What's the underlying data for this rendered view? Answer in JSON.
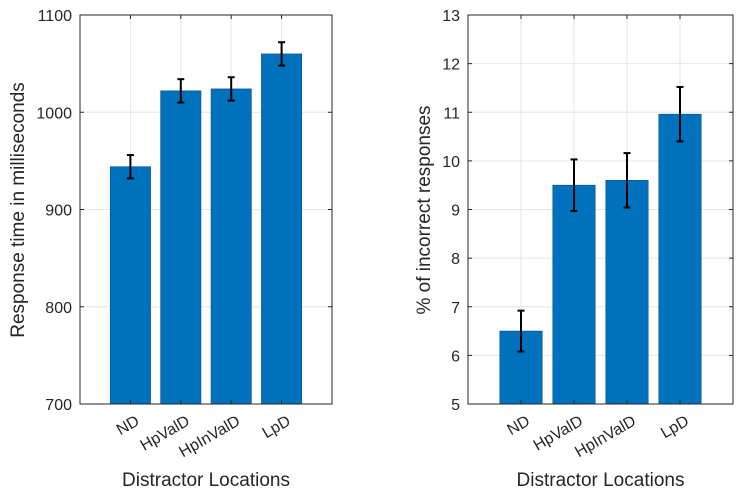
{
  "chart_data": [
    {
      "type": "bar",
      "title": "",
      "xlabel": "Distractor Locations",
      "ylabel": "Response time in milliseconds",
      "categories": [
        "ND",
        "HpValD",
        "HpInValD",
        "LpD"
      ],
      "values": [
        944,
        1022,
        1024,
        1060
      ],
      "errors": [
        12,
        12,
        12,
        12
      ],
      "ylim": [
        700,
        1100
      ],
      "yticks": [
        700,
        800,
        900,
        1000,
        1100
      ],
      "ytick_labels": [
        "700",
        "800",
        "900",
        "1000",
        "1100"
      ],
      "grid": true,
      "bar_color": "#0072BD",
      "error_color": "#000000"
    },
    {
      "type": "bar",
      "title": "",
      "xlabel": "Distractor Locations",
      "ylabel": "% of incorrect responses",
      "categories": [
        "ND",
        "HpValD",
        "HpInValD",
        "LpD"
      ],
      "values": [
        6.5,
        9.5,
        9.6,
        10.96
      ],
      "errors": [
        0.42,
        0.53,
        0.56,
        0.56
      ],
      "ylim": [
        5,
        13
      ],
      "yticks": [
        5,
        6,
        7,
        8,
        9,
        10,
        11,
        12,
        13
      ],
      "ytick_labels": [
        "5",
        "6",
        "7",
        "8",
        "9",
        "10",
        "11",
        "12",
        "13"
      ],
      "grid": true,
      "bar_color": "#0072BD",
      "error_color": "#000000"
    }
  ]
}
